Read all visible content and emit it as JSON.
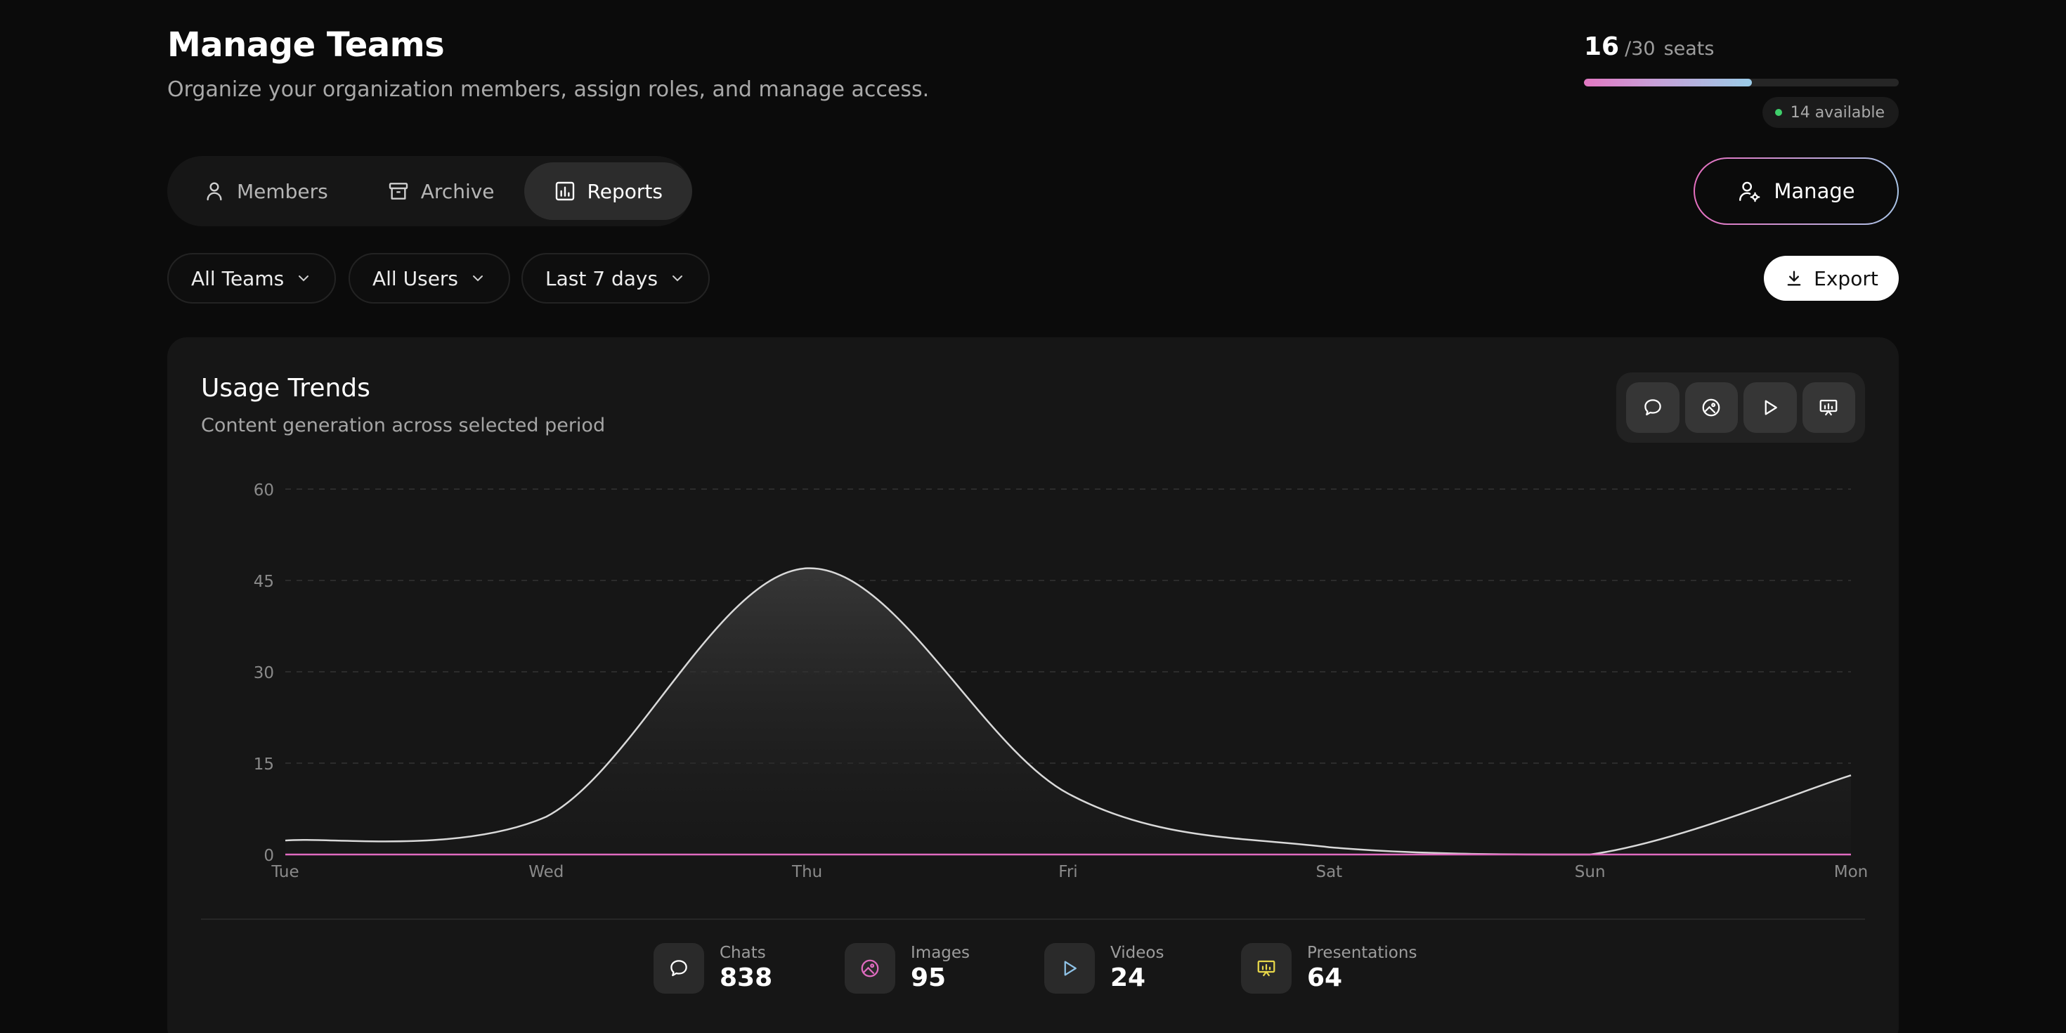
{
  "header": {
    "title": "Manage Teams",
    "subtitle": "Organize your organization members, assign roles, and manage access."
  },
  "seats": {
    "used": "16",
    "total": "/30",
    "label": "seats",
    "fill_fraction": 0.533,
    "available": "14 available",
    "available_color": "#3fcf6b"
  },
  "tabs": [
    {
      "label": "Members",
      "icon": "user-icon"
    },
    {
      "label": "Archive",
      "icon": "archive-icon"
    },
    {
      "label": "Reports",
      "icon": "bar-chart-icon",
      "active": true
    }
  ],
  "manage_button": {
    "label": "Manage",
    "icon": "user-gear-icon"
  },
  "filters": [
    {
      "label": "All Teams"
    },
    {
      "label": "All Users"
    },
    {
      "label": "Last 7 days"
    }
  ],
  "export_button": {
    "label": "Export",
    "icon": "download-icon"
  },
  "card": {
    "title": "Usage Trends",
    "subtitle": "Content generation across selected period",
    "toggles": [
      "chat-icon",
      "image-icon",
      "play-icon",
      "presentation-icon"
    ]
  },
  "chart_data": {
    "type": "area",
    "title": "",
    "xlabel": "",
    "ylabel": "",
    "categories": [
      "Tue",
      "Wed",
      "Thu",
      "Fri",
      "Sat",
      "Sun",
      "Mon"
    ],
    "ylim": [
      0,
      60
    ],
    "yticks": [
      0,
      15,
      30,
      45,
      60
    ],
    "grid": true,
    "series": [
      {
        "values": [
          2.3,
          6.2,
          47,
          10,
          1.2,
          0,
          13
        ],
        "color": "#d9d9d9",
        "fill": true
      },
      {
        "values": [
          0,
          0,
          0,
          0,
          0,
          0,
          0
        ],
        "color": "#e06bc0"
      }
    ]
  },
  "stats": [
    {
      "label": "Chats",
      "value": "838",
      "icon": "chat-icon",
      "color": "#ffffff"
    },
    {
      "label": "Images",
      "value": "95",
      "icon": "image-icon",
      "color": "#e06bc0"
    },
    {
      "label": "Videos",
      "value": "24",
      "icon": "play-icon",
      "color": "#8fc3e8"
    },
    {
      "label": "Presentations",
      "value": "64",
      "icon": "presentation-icon",
      "color": "#e8d84a"
    }
  ]
}
